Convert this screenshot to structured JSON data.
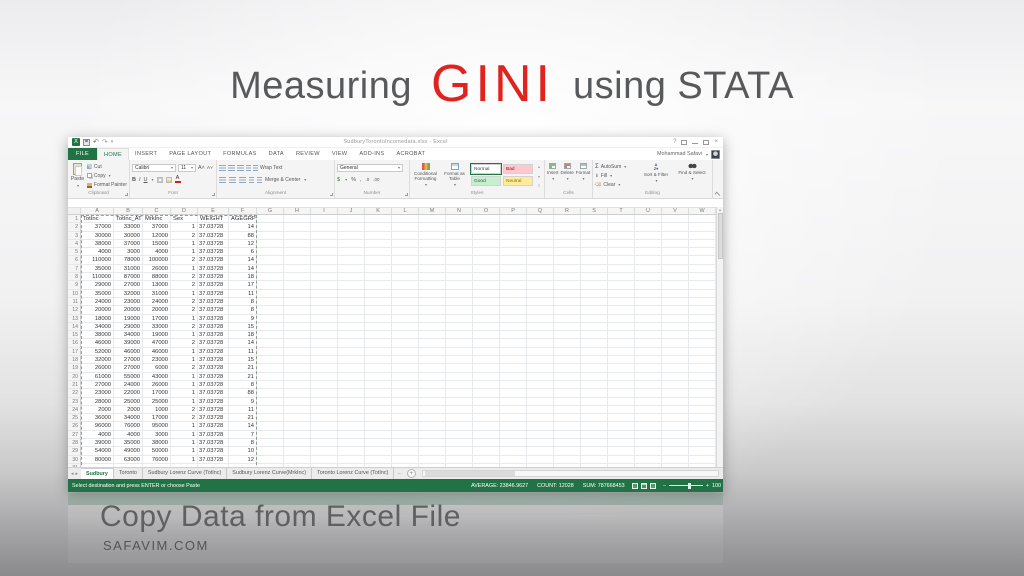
{
  "slide": {
    "title": {
      "prefix": "Measuring",
      "highlight": "GINI",
      "suffix": "using STATA"
    },
    "caption": "Copy Data from Excel File",
    "website": "SAFAVIM.COM"
  },
  "excel": {
    "colors": {
      "excel_green": "#217346",
      "title_red": "#e0231e"
    },
    "titlebar": {
      "document_title": "SudburyTorontoIncomedata.xlsx - Excel",
      "user_name": "Mohammad Safavi",
      "glyphs": {
        "help": "?",
        "minimize": "–",
        "close": "×"
      }
    },
    "ribbon_tabs": [
      "FILE",
      "HOME",
      "INSERT",
      "PAGE LAYOUT",
      "FORMULAS",
      "DATA",
      "REVIEW",
      "VIEW",
      "ADD-INS",
      "ACROBAT"
    ],
    "active_tab": "HOME",
    "groups": {
      "clipboard": {
        "label": "Clipboard",
        "paste": "Paste",
        "cut": "Cut",
        "copy": "Copy",
        "format_painter": "Format Painter"
      },
      "font": {
        "label": "Font",
        "font_name": "Calibri",
        "font_size": "11",
        "bold": "B",
        "italic": "I",
        "underline": "U"
      },
      "alignment": {
        "label": "Alignment",
        "wrap_text": "Wrap Text",
        "merge_center": "Merge & Center"
      },
      "number": {
        "label": "Number",
        "format": "General"
      },
      "styles": {
        "label": "Styles",
        "conditional": "Conditional Formatting",
        "format_table": "Format as Table",
        "gallery": [
          {
            "name": "Normal",
            "bg": "#ffffff",
            "fg": "#444444"
          },
          {
            "name": "Bad",
            "bg": "#ffc7ce",
            "fg": "#9c0006"
          },
          {
            "name": "Good",
            "bg": "#c6efce",
            "fg": "#276221"
          },
          {
            "name": "Neutral",
            "bg": "#ffeb9c",
            "fg": "#9c6500"
          }
        ]
      },
      "cells": {
        "label": "Cells",
        "buttons": [
          "Insert",
          "Delete",
          "Format"
        ]
      },
      "editing": {
        "label": "Editing",
        "autosum": "AutoSum",
        "fill": "Fill",
        "clear": "Clear",
        "sort_filter": "Sort & Filter",
        "find_select": "Find & Select"
      }
    },
    "sheet": {
      "column_letters": [
        "A",
        "B",
        "C",
        "D",
        "E",
        "F",
        "G",
        "H",
        "I",
        "J",
        "K",
        "L",
        "M",
        "N",
        "O",
        "P",
        "Q",
        "R",
        "S",
        "T",
        "U",
        "V",
        "W"
      ],
      "headers": [
        "TotInc",
        "TotInc_AT",
        "MrkInc",
        "Sex",
        "WEIGHT",
        "AGEGRP"
      ],
      "visible_row_count": 31,
      "rows": [
        [
          37000,
          33000,
          37000,
          1,
          "37.03728",
          14
        ],
        [
          30000,
          30000,
          12000,
          2,
          "37.03728",
          88
        ],
        [
          38000,
          37000,
          15000,
          1,
          "37.03728",
          12
        ],
        [
          4000,
          3000,
          4000,
          1,
          "37.03728",
          6
        ],
        [
          110000,
          78000,
          100000,
          2,
          "37.03728",
          14
        ],
        [
          35000,
          31000,
          26000,
          1,
          "37.03728",
          14
        ],
        [
          110000,
          87000,
          88000,
          2,
          "37.03728",
          18
        ],
        [
          29000,
          27000,
          13000,
          2,
          "37.03728",
          17
        ],
        [
          35000,
          32000,
          31000,
          1,
          "37.03728",
          11
        ],
        [
          24000,
          23000,
          24000,
          2,
          "37.03728",
          8
        ],
        [
          20000,
          20000,
          20000,
          2,
          "37.03728",
          8
        ],
        [
          18000,
          19000,
          17000,
          1,
          "37.03728",
          9
        ],
        [
          34000,
          29000,
          33000,
          2,
          "37.03728",
          15
        ],
        [
          38000,
          34000,
          19000,
          1,
          "37.03728",
          18
        ],
        [
          46000,
          39000,
          47000,
          2,
          "37.03728",
          14
        ],
        [
          52000,
          46000,
          46000,
          1,
          "37.03728",
          11
        ],
        [
          32000,
          27000,
          23000,
          1,
          "37.03728",
          15
        ],
        [
          26000,
          27000,
          6000,
          2,
          "37.03728",
          21
        ],
        [
          61000,
          55000,
          43000,
          1,
          "37.03728",
          21
        ],
        [
          27000,
          24000,
          26000,
          1,
          "37.03728",
          8
        ],
        [
          23000,
          22000,
          17000,
          1,
          "37.03728",
          88
        ],
        [
          28000,
          25000,
          25000,
          1,
          "37.03728",
          9
        ],
        [
          2000,
          2000,
          1000,
          2,
          "37.03728",
          11
        ],
        [
          36000,
          34000,
          17000,
          2,
          "37.03728",
          21
        ],
        [
          96000,
          76000,
          95000,
          1,
          "37.03728",
          14
        ],
        [
          4000,
          4000,
          3000,
          1,
          "37.03728",
          7
        ],
        [
          39000,
          35000,
          38000,
          1,
          "37.03728",
          8
        ],
        [
          54000,
          49000,
          50000,
          1,
          "37.03728",
          10
        ],
        [
          80000,
          63000,
          76000,
          1,
          "37.03728",
          12
        ]
      ]
    },
    "sheet_tabs": {
      "tabs": [
        "Sudbury",
        "Toronto",
        "Sudbury Lorenz Curve (TotInc)",
        "Sudbury Lorenz Curve(MrkInc)",
        "Toronto Lorenz Curve (TotInc)"
      ],
      "active": "Sudbury",
      "overflow": "..."
    },
    "statusbar": {
      "message": "Select destination and press ENTER or choose Paste",
      "average": "AVERAGE: 23846.9627",
      "count": "COUNT: 12028",
      "sum": "SUM: 787668453",
      "zoom": "100%"
    }
  }
}
